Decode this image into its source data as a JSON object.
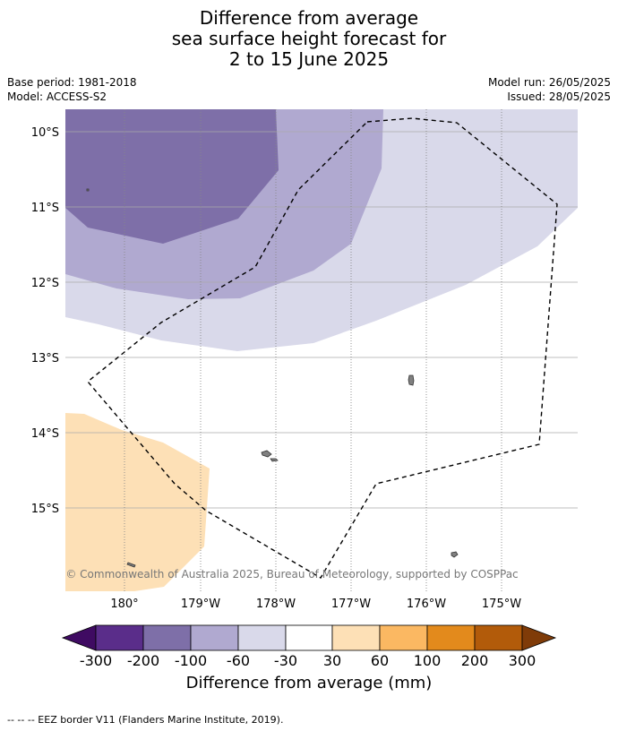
{
  "title": {
    "line1": "Difference from average",
    "line2": "sea surface height forecast for",
    "line3": "2 to 15 June 2025"
  },
  "meta": {
    "base_period": "Base period: 1981-2018",
    "model": "Model: ACCESS-S2",
    "model_run": "Model run: 26/05/2025",
    "issued": "Issued: 28/05/2025"
  },
  "map": {
    "lat_labels": [
      "10°S",
      "11°S",
      "12°S",
      "13°S",
      "14°S",
      "15°S"
    ],
    "lon_labels": [
      "180°",
      "179°W",
      "178°W",
      "177°W",
      "176°W",
      "175°W"
    ],
    "copyright": "© Commonwealth of Australia 2025, Bureau of Meteorology, supported by COSPPac",
    "colors": {
      "n300": "#3f0b62",
      "n200": "#5a2d8a",
      "n100": "#7e6fa8",
      "n60": "#b0a9d0",
      "n30": "#d9d9ea",
      "zero": "#ffffff",
      "p30": "#fde0b6",
      "p60": "#fbb862",
      "p100": "#e38a1c",
      "p200": "#b25b0a",
      "p300": "#7f3b08",
      "land": "#808080",
      "grid": "#aaaaaa"
    }
  },
  "colorbar": {
    "labels": [
      "-300",
      "-200",
      "-100",
      "-60",
      "-30",
      "30",
      "60",
      "100",
      "200",
      "300"
    ],
    "title": "Difference from average (mm)"
  },
  "footer": {
    "text": "--  --  -- EEZ border V11 (Flanders Marine Institute, 2019)."
  }
}
